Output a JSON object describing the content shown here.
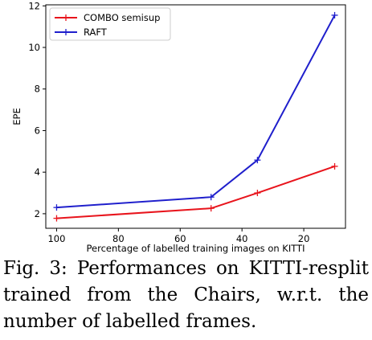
{
  "chart_data": {
    "type": "line",
    "title": "",
    "xlabel": "Percentage of labelled training images on KITTI",
    "ylabel": "EPE",
    "xlim": [
      103.5,
      6.5
    ],
    "ylim": [
      1.3,
      12.05
    ],
    "x_ticks": [
      100,
      80,
      60,
      40,
      20
    ],
    "y_ticks": [
      2,
      4,
      6,
      8,
      10,
      12
    ],
    "grid": false,
    "legend_position": "top-left",
    "series": [
      {
        "name": "COMBO semisup",
        "color": "#e8141c",
        "x": [
          100,
          50,
          35,
          10
        ],
        "y": [
          1.78,
          2.26,
          3.0,
          4.28
        ]
      },
      {
        "name": "RAFT",
        "color": "#1f1fcc",
        "x": [
          100,
          50,
          35,
          10
        ],
        "y": [
          2.3,
          2.8,
          4.58,
          11.55
        ]
      }
    ]
  },
  "caption": {
    "text": "Fig. 3: Performances on KITTI-resplit trained from the Chairs, w.r.t. the number of labelled frames."
  }
}
